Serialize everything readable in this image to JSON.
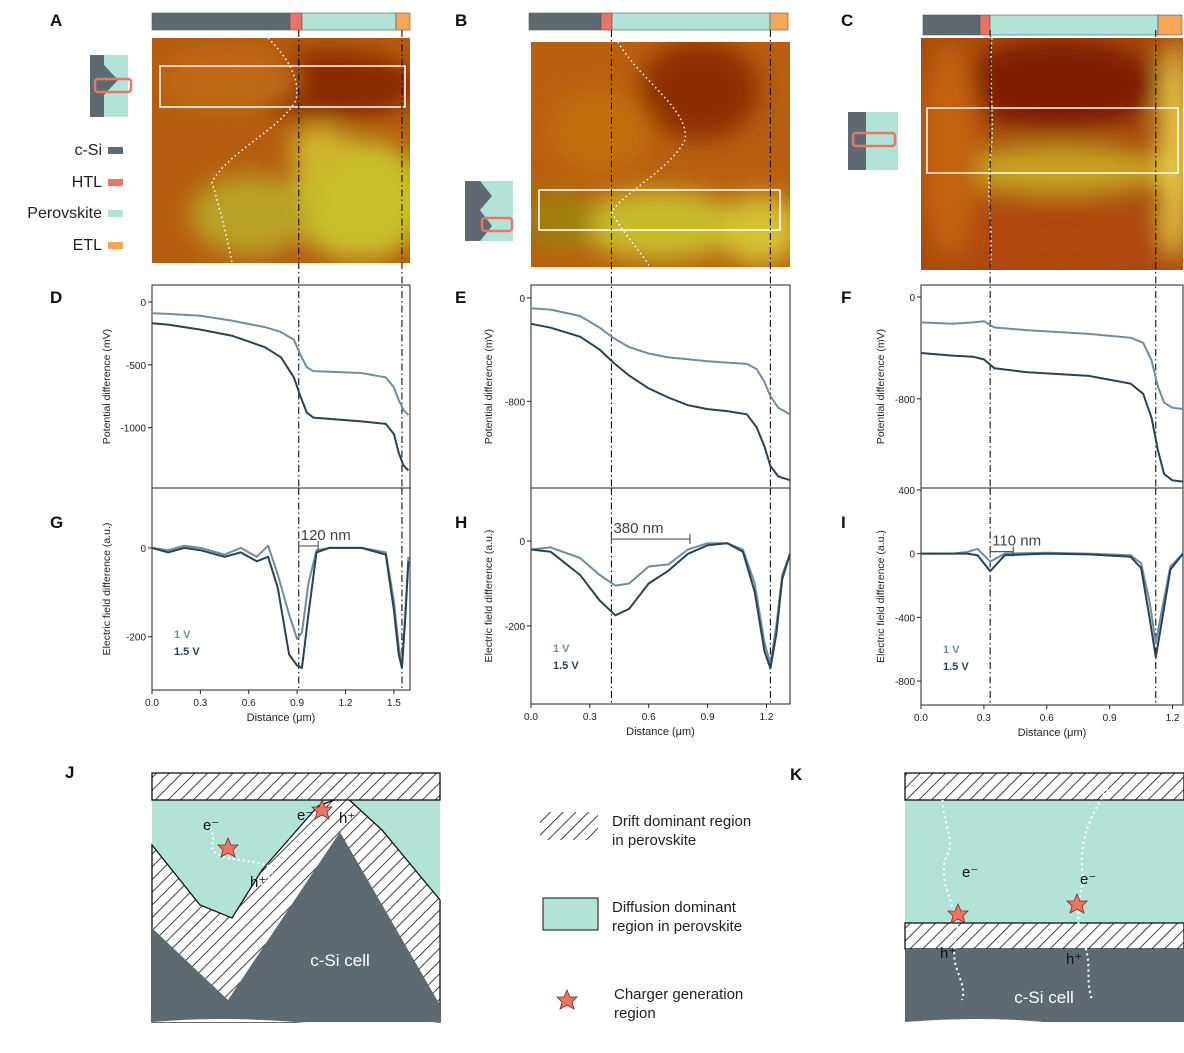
{
  "panel_labels": [
    "A",
    "B",
    "C",
    "D",
    "E",
    "F",
    "G",
    "H",
    "I",
    "J",
    "K"
  ],
  "layer_legend": [
    {
      "label": "c-Si",
      "color": "#5e6a72"
    },
    {
      "label": "HTL",
      "color": "#ec7465"
    },
    {
      "label": "Perovskite",
      "color": "#b3e3d7"
    },
    {
      "label": "ETL",
      "color": "#f5a656"
    }
  ],
  "chart_data": [
    {
      "type": "line",
      "ylabel": "Potential difference (mV)",
      "xlim": [
        0,
        1.6
      ],
      "ylim": [
        -1480,
        135
      ],
      "yticks": [
        0,
        -500,
        -1000
      ],
      "x": [
        0,
        0.1,
        0.3,
        0.5,
        0.7,
        0.8,
        0.88,
        0.92,
        0.96,
        1.0,
        1.1,
        1.3,
        1.45,
        1.5,
        1.53,
        1.56,
        1.59
      ],
      "vlines": [
        0.91,
        1.55
      ],
      "series": [
        {
          "color": "#6e8da3",
          "values": [
            -90,
            -95,
            -110,
            -150,
            -200,
            -240,
            -300,
            -420,
            -520,
            -550,
            -555,
            -565,
            -600,
            -680,
            -780,
            -860,
            -900
          ]
        },
        {
          "color": "#2a4256",
          "values": [
            -170,
            -180,
            -220,
            -270,
            -360,
            -440,
            -600,
            -750,
            -880,
            -920,
            -930,
            -950,
            -970,
            -1050,
            -1200,
            -1300,
            -1340
          ]
        }
      ]
    },
    {
      "type": "line",
      "ylabel": "Potential difference (mV)",
      "xlim": [
        0,
        1.32
      ],
      "ylim": [
        -1470,
        100
      ],
      "yticks": [
        0,
        -800
      ],
      "x": [
        0,
        0.1,
        0.25,
        0.35,
        0.42,
        0.5,
        0.6,
        0.7,
        0.8,
        0.9,
        1.0,
        1.1,
        1.15,
        1.19,
        1.22,
        1.26,
        1.32
      ],
      "vlines": [
        0.41,
        1.22
      ],
      "series": [
        {
          "color": "#6e8da3",
          "values": [
            -80,
            -90,
            -140,
            -230,
            -310,
            -380,
            -430,
            -460,
            -475,
            -490,
            -500,
            -510,
            -550,
            -650,
            -760,
            -850,
            -900
          ]
        },
        {
          "color": "#2a4256",
          "values": [
            -200,
            -230,
            -300,
            -400,
            -500,
            -600,
            -700,
            -770,
            -830,
            -860,
            -875,
            -900,
            -1000,
            -1150,
            -1300,
            -1380,
            -1410
          ]
        }
      ]
    },
    {
      "type": "line",
      "ylabel": "Potential difference (mV)",
      "xlim": [
        0,
        1.25
      ],
      "ylim": [
        -1500,
        94
      ],
      "yticks": [
        0,
        -800
      ],
      "x": [
        0,
        0.15,
        0.25,
        0.3,
        0.35,
        0.5,
        0.8,
        1.0,
        1.06,
        1.1,
        1.13,
        1.16,
        1.2,
        1.25
      ],
      "vlines": [
        0.33,
        1.12
      ],
      "series": [
        {
          "color": "#6e8da3",
          "values": [
            -200,
            -210,
            -200,
            -190,
            -240,
            -260,
            -290,
            -320,
            -360,
            -500,
            -700,
            -830,
            -870,
            -880
          ]
        },
        {
          "color": "#2a4256",
          "values": [
            -440,
            -460,
            -470,
            -490,
            -560,
            -590,
            -620,
            -680,
            -760,
            -950,
            -1200,
            -1390,
            -1440,
            -1450
          ]
        }
      ]
    },
    {
      "type": "line",
      "ylabel": "Electric field difference (a.u.)",
      "xlabel": "Distance (μm)",
      "xlim": [
        0,
        1.6
      ],
      "ylim": [
        -320,
        135
      ],
      "yticks": [
        0,
        -200
      ],
      "xticks": [
        {
          "value": 0,
          "label": "0.0"
        },
        0.3,
        0.6,
        0.9,
        1.2,
        1.5
      ],
      "x": [
        0,
        0.1,
        0.2,
        0.3,
        0.45,
        0.55,
        0.65,
        0.72,
        0.78,
        0.85,
        0.9,
        0.93,
        0.97,
        1.02,
        1.1,
        1.3,
        1.45,
        1.5,
        1.53,
        1.55,
        1.57,
        1.59
      ],
      "vlines": [
        0.91,
        1.55
      ],
      "annotation": {
        "text": "120 nm",
        "x": [
          0.91,
          1.03
        ]
      },
      "series": [
        {
          "name": "1 V",
          "color": "#6e8da3",
          "values": [
            0,
            -5,
            5,
            0,
            -15,
            0,
            -20,
            5,
            -60,
            -150,
            -205,
            -190,
            -80,
            -5,
            0,
            0,
            -10,
            -120,
            -220,
            -270,
            -150,
            -20
          ]
        },
        {
          "name": "1.5 V",
          "color": "#2a4256",
          "values": [
            0,
            -10,
            0,
            -5,
            -20,
            -10,
            -30,
            -20,
            -90,
            -240,
            -265,
            -270,
            -150,
            -10,
            0,
            0,
            -15,
            -140,
            -240,
            -270,
            -160,
            -30
          ]
        }
      ]
    },
    {
      "type": "line",
      "ylabel": "Electric field difference (a.u.)",
      "xlabel": "Distance (μm)",
      "xlim": [
        0,
        1.32
      ],
      "ylim": [
        -384,
        125
      ],
      "yticks": [
        0,
        -200
      ],
      "xticks": [
        {
          "value": 0,
          "label": "0.0"
        },
        0.3,
        0.6,
        0.9,
        1.2
      ],
      "x": [
        0,
        0.1,
        0.25,
        0.35,
        0.43,
        0.5,
        0.6,
        0.7,
        0.8,
        0.9,
        1.0,
        1.08,
        1.14,
        1.19,
        1.22,
        1.25,
        1.28,
        1.32
      ],
      "vlines": [
        0.41,
        1.22
      ],
      "annotation": {
        "text": "380 nm",
        "x": [
          0.41,
          0.81
        ]
      },
      "series": [
        {
          "name": "1 V",
          "color": "#6e8da3",
          "values": [
            -20,
            -15,
            -40,
            -80,
            -105,
            -100,
            -60,
            -55,
            -20,
            -5,
            -5,
            -20,
            -100,
            -240,
            -290,
            -200,
            -80,
            -30
          ]
        },
        {
          "name": "1.5 V",
          "color": "#2a4256",
          "values": [
            -20,
            -25,
            -80,
            -140,
            -175,
            -160,
            -100,
            -70,
            -30,
            -10,
            -5,
            -25,
            -120,
            -260,
            -300,
            -220,
            -90,
            -30
          ]
        }
      ]
    },
    {
      "type": "line",
      "ylabel": "Electric field difference (a.u.)",
      "xlabel": "Distance (μm)",
      "xlim": [
        0,
        1.25
      ],
      "ylim": [
        -950,
        412
      ],
      "yticks": [
        400,
        0,
        -400,
        -800
      ],
      "xticks": [
        {
          "value": 0,
          "label": "0.0"
        },
        0.3,
        0.6,
        0.9,
        1.2
      ],
      "x": [
        0,
        0.15,
        0.22,
        0.27,
        0.33,
        0.4,
        0.6,
        0.8,
        1.0,
        1.05,
        1.09,
        1.12,
        1.15,
        1.19,
        1.25
      ],
      "vlines": [
        0.33,
        1.12
      ],
      "annotation": {
        "text": "110 nm",
        "x": [
          0.33,
          0.44
        ]
      },
      "series": [
        {
          "name": "1 V",
          "color": "#6e8da3",
          "values": [
            0,
            0,
            10,
            30,
            -50,
            0,
            5,
            0,
            -10,
            -60,
            -300,
            -560,
            -350,
            -80,
            0
          ]
        },
        {
          "name": "1.5 V",
          "color": "#2a4256",
          "values": [
            0,
            0,
            0,
            -10,
            -110,
            -10,
            0,
            -5,
            -20,
            -90,
            -400,
            -650,
            -420,
            -100,
            0
          ]
        }
      ]
    }
  ],
  "diagram_legend": [
    "Drift dominant region in perovskite",
    "Diffusion dominant region in perovskite",
    "Charger generation region"
  ],
  "diagram_j": {
    "labels": [
      "e⁻",
      "h⁺",
      "e⁻",
      "h⁺"
    ],
    "substrate": "c-Si cell"
  },
  "diagram_k": {
    "labels": [
      "e⁻",
      "h⁺",
      "e⁻",
      "h⁺"
    ],
    "substrate": "c-Si cell"
  }
}
